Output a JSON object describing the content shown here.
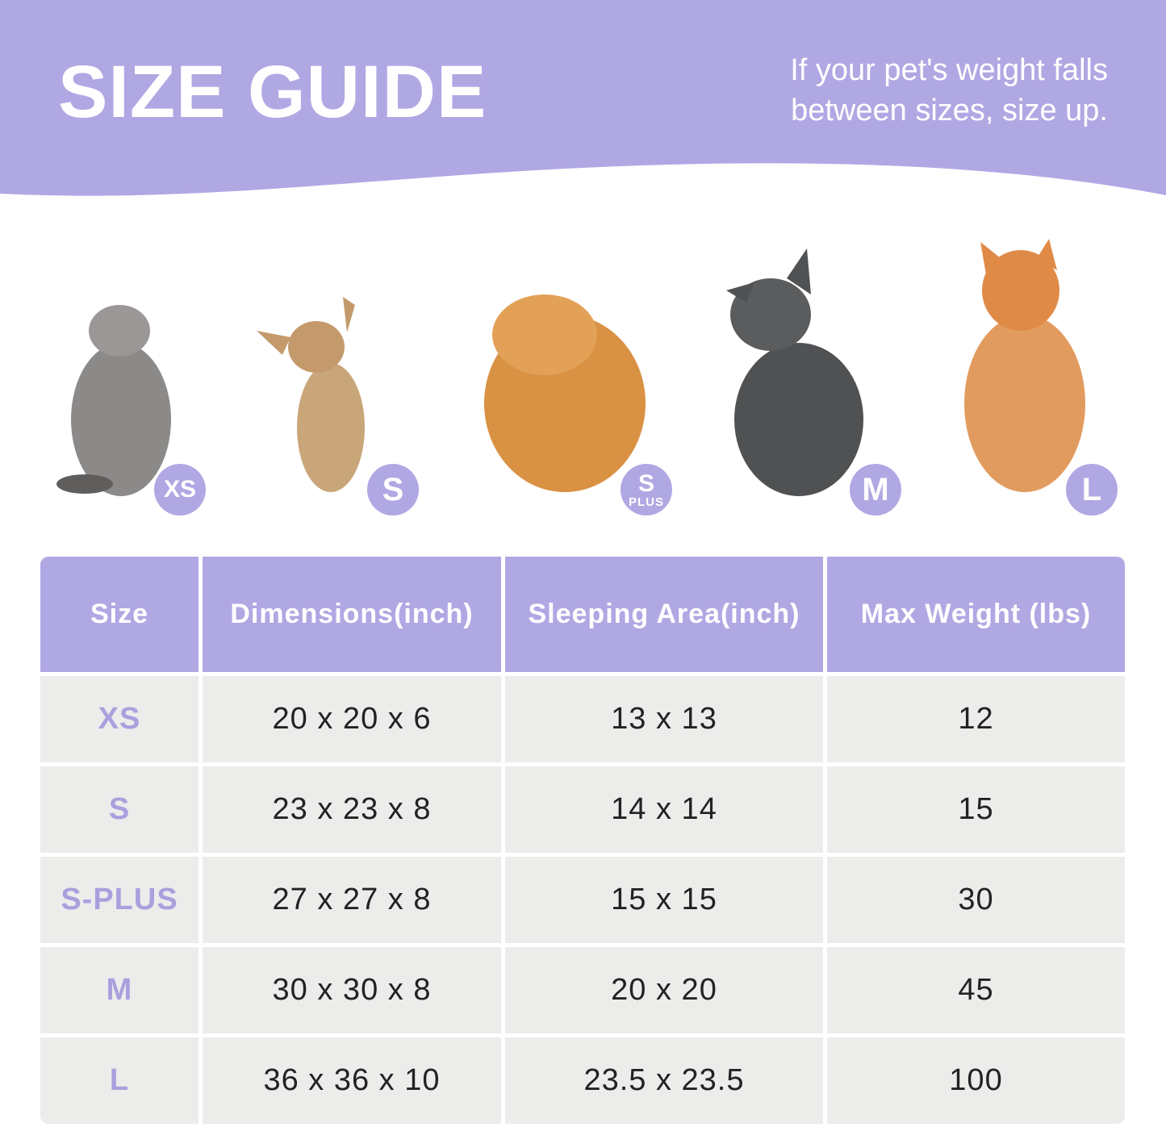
{
  "header": {
    "title": "SIZE GUIDE",
    "note_line1": "If your pet's weight falls",
    "note_line2": "between sizes, size up."
  },
  "colors": {
    "accent": "#b0a8e3",
    "row_bg": "#ececeb",
    "size_text": "#a9a0de"
  },
  "pets": [
    {
      "animal": "cat",
      "badge": "XS"
    },
    {
      "animal": "chihuahua",
      "badge": "S"
    },
    {
      "animal": "pomeranian",
      "badge": "S",
      "badge_sub": "PLUS"
    },
    {
      "animal": "french-bulldog",
      "badge": "M"
    },
    {
      "animal": "shiba-inu",
      "badge": "L"
    }
  ],
  "table": {
    "headers": [
      "Size",
      "Dimensions(inch)",
      "Sleeping Area(inch)",
      "Max Weight (lbs)"
    ],
    "rows": [
      [
        "XS",
        "20 x 20 x 6",
        "13 x 13",
        "12"
      ],
      [
        "S",
        "23 x 23 x 8",
        "14 x 14",
        "15"
      ],
      [
        "S-PLUS",
        "27 x 27 x 8",
        "15 x 15",
        "30"
      ],
      [
        "M",
        "30 x 30 x 8",
        "20 x 20",
        "45"
      ],
      [
        "L",
        "36 x 36 x 10",
        "23.5 x 23.5",
        "100"
      ]
    ]
  }
}
